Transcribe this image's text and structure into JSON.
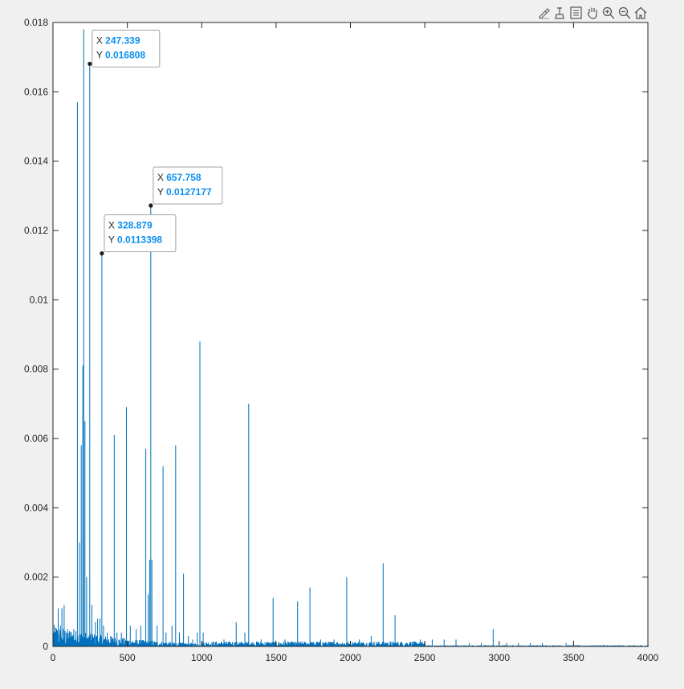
{
  "toolbar": {
    "icons": [
      "brush-icon",
      "data-cursor-icon",
      "legend-icon",
      "pan-hand-icon",
      "zoom-in-icon",
      "zoom-out-icon",
      "home-icon"
    ]
  },
  "colors": {
    "line": "#0072bd",
    "axes": "#262626",
    "tip_value": "#0a8ff0"
  },
  "chart_data": {
    "type": "line",
    "title": "",
    "xlabel": "",
    "ylabel": "",
    "xlim": [
      0,
      4000
    ],
    "ylim": [
      0,
      0.018
    ],
    "grid": false,
    "x_ticks": [
      0,
      500,
      1000,
      1500,
      2000,
      2500,
      3000,
      3500,
      4000
    ],
    "x_tick_labels": [
      "0",
      "500",
      "1000",
      "1500",
      "2000",
      "2500",
      "3000",
      "3500",
      "4000"
    ],
    "y_ticks": [
      0,
      0.002,
      0.004,
      0.006,
      0.008,
      0.01,
      0.012,
      0.014,
      0.016,
      0.018
    ],
    "y_tick_labels": [
      "0",
      "0.002",
      "0.004",
      "0.006",
      "0.008",
      "0.01",
      "0.012",
      "0.014",
      "0.016",
      "0.018"
    ],
    "peaks": [
      {
        "x": 20,
        "y": 0.0004
      },
      {
        "x": 35,
        "y": 0.0011
      },
      {
        "x": 50,
        "y": 0.0006
      },
      {
        "x": 60,
        "y": 0.0011
      },
      {
        "x": 75,
        "y": 0.0012
      },
      {
        "x": 90,
        "y": 0.0004
      },
      {
        "x": 110,
        "y": 0.0003
      },
      {
        "x": 140,
        "y": 0.0005
      },
      {
        "x": 164,
        "y": 0.0157
      },
      {
        "x": 178,
        "y": 0.003
      },
      {
        "x": 190,
        "y": 0.0058
      },
      {
        "x": 200,
        "y": 0.0081
      },
      {
        "x": 207,
        "y": 0.0178
      },
      {
        "x": 215,
        "y": 0.0065
      },
      {
        "x": 226,
        "y": 0.002
      },
      {
        "x": 247.339,
        "y": 0.016808
      },
      {
        "x": 262,
        "y": 0.0012
      },
      {
        "x": 285,
        "y": 0.0007
      },
      {
        "x": 300,
        "y": 0.0008
      },
      {
        "x": 316,
        "y": 0.0008
      },
      {
        "x": 328.879,
        "y": 0.0113398
      },
      {
        "x": 340,
        "y": 0.0006
      },
      {
        "x": 365,
        "y": 0.0004
      },
      {
        "x": 388,
        "y": 0.0003
      },
      {
        "x": 412,
        "y": 0.0061
      },
      {
        "x": 430,
        "y": 0.0004
      },
      {
        "x": 460,
        "y": 0.0004
      },
      {
        "x": 494,
        "y": 0.0069
      },
      {
        "x": 520,
        "y": 0.0006
      },
      {
        "x": 560,
        "y": 0.0005
      },
      {
        "x": 590,
        "y": 0.0006
      },
      {
        "x": 624,
        "y": 0.0057
      },
      {
        "x": 640,
        "y": 0.0015
      },
      {
        "x": 650,
        "y": 0.0025
      },
      {
        "x": 657.758,
        "y": 0.0127177
      },
      {
        "x": 665,
        "y": 0.0025
      },
      {
        "x": 700,
        "y": 0.0006
      },
      {
        "x": 740,
        "y": 0.0052
      },
      {
        "x": 760,
        "y": 0.0004
      },
      {
        "x": 800,
        "y": 0.0006
      },
      {
        "x": 825,
        "y": 0.0058
      },
      {
        "x": 850,
        "y": 0.0004
      },
      {
        "x": 878,
        "y": 0.0021
      },
      {
        "x": 910,
        "y": 0.0003
      },
      {
        "x": 940,
        "y": 0.0002
      },
      {
        "x": 970,
        "y": 0.0004
      },
      {
        "x": 988,
        "y": 0.0088
      },
      {
        "x": 1010,
        "y": 0.0004
      },
      {
        "x": 1150,
        "y": 0.0002
      },
      {
        "x": 1232,
        "y": 0.0007
      },
      {
        "x": 1290,
        "y": 0.0004
      },
      {
        "x": 1316,
        "y": 0.007
      },
      {
        "x": 1400,
        "y": 0.0002
      },
      {
        "x": 1480,
        "y": 0.0014
      },
      {
        "x": 1560,
        "y": 0.0002
      },
      {
        "x": 1645,
        "y": 0.0013
      },
      {
        "x": 1728,
        "y": 0.0017
      },
      {
        "x": 1800,
        "y": 0.0002
      },
      {
        "x": 1890,
        "y": 0.0002
      },
      {
        "x": 1975,
        "y": 0.002
      },
      {
        "x": 2060,
        "y": 0.0002
      },
      {
        "x": 2140,
        "y": 0.0003
      },
      {
        "x": 2220,
        "y": 0.0024
      },
      {
        "x": 2300,
        "y": 0.0009
      },
      {
        "x": 2400,
        "y": 0.0001
      },
      {
        "x": 2470,
        "y": 0.0002
      },
      {
        "x": 2550,
        "y": 0.0002
      },
      {
        "x": 2630,
        "y": 0.0002
      },
      {
        "x": 2710,
        "y": 0.0002
      },
      {
        "x": 2800,
        "y": 0.0001
      },
      {
        "x": 2880,
        "y": 0.0001
      },
      {
        "x": 2960,
        "y": 0.0005
      },
      {
        "x": 3050,
        "y": 0.0001
      },
      {
        "x": 3130,
        "y": 0.0001
      },
      {
        "x": 3210,
        "y": 0.0001
      },
      {
        "x": 3290,
        "y": 0.0001
      },
      {
        "x": 3450,
        "y": 0.0001
      },
      {
        "x": 3700,
        "y": 5e-05
      }
    ],
    "datatips": [
      {
        "x": 247.339,
        "y": 0.016808,
        "x_label": "X",
        "y_label": "Y",
        "x_text": "247.339",
        "y_text": "0.016808"
      },
      {
        "x": 657.758,
        "y": 0.0127177,
        "x_label": "X",
        "y_label": "Y",
        "x_text": "657.758",
        "y_text": "0.0127177"
      },
      {
        "x": 328.879,
        "y": 0.0113398,
        "x_label": "X",
        "y_label": "Y",
        "x_text": "328.879",
        "y_text": "0.0113398"
      }
    ]
  }
}
